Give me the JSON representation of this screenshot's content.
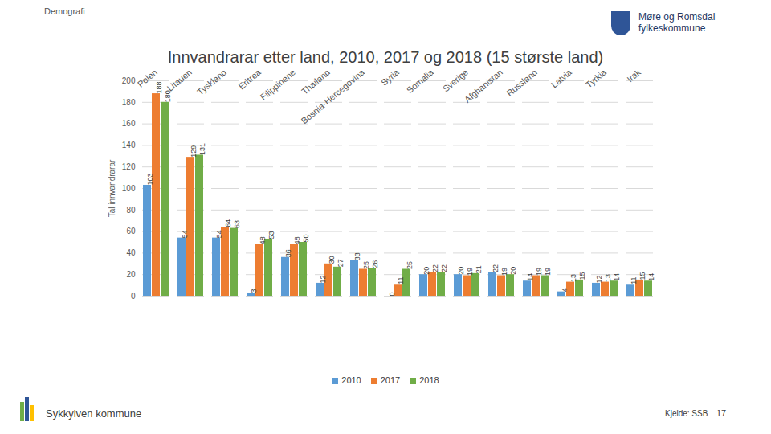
{
  "page": {
    "header": "Demografi",
    "logo": [
      "Møre og Romsdal",
      "fylkeskommune"
    ],
    "footer": "Sykkylven kommune",
    "source": "Kjelde: SSB",
    "page_number": "17"
  },
  "chart_data": {
    "type": "bar",
    "title": "Innvandrarar etter land, 2010, 2017 og 2018 (15 største land)",
    "y_label": "Tal innvandrarar",
    "categories": [
      "Polen",
      "Litauen",
      "Tyskland",
      "Eritrea",
      "Filippinene",
      "Thailand",
      "Bosnia-Hercegovina",
      "Syria",
      "Somalia",
      "Sverige",
      "Afghanistan",
      "Russland",
      "Latvia",
      "Tyrkia",
      "Irak"
    ],
    "series": [
      {
        "name": "2010",
        "color": "#5b9bd5",
        "values": [
          103,
          54,
          54,
          3,
          36,
          12,
          33,
          0,
          20,
          20,
          22,
          14,
          4,
          12,
          11
        ]
      },
      {
        "name": "2017",
        "color": "#ed7d31",
        "values": [
          188,
          129,
          64,
          48,
          48,
          30,
          25,
          11,
          22,
          19,
          19,
          19,
          13,
          13,
          15
        ]
      },
      {
        "name": "2018",
        "color": "#70ad47",
        "values": [
          180,
          131,
          63,
          53,
          50,
          27,
          26,
          25,
          22,
          21,
          20,
          19,
          15,
          14,
          14
        ]
      }
    ],
    "ylim": [
      0,
      200
    ],
    "yticks": [
      0,
      20,
      40,
      60,
      80,
      100,
      120,
      140,
      160,
      180,
      200
    ],
    "grid": true,
    "legend": "bottom",
    "data_labels": true
  }
}
